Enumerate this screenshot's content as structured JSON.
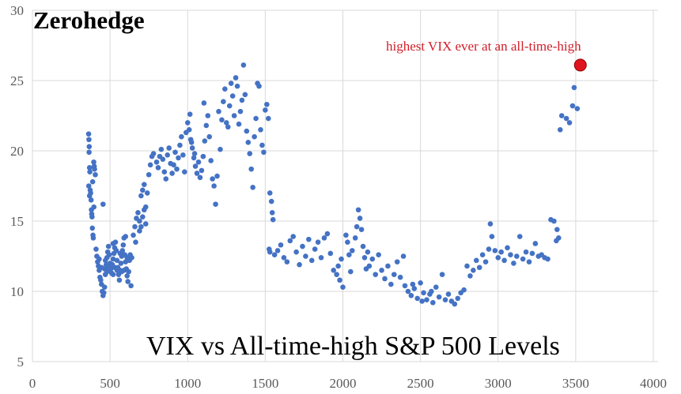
{
  "chart_data": {
    "type": "scatter",
    "title": "VIX vs All-time-high S&P 500 Levels",
    "watermark": "Zerohedge",
    "xlabel": "",
    "ylabel": "",
    "xlim": [
      0,
      4000
    ],
    "ylim": [
      5,
      30
    ],
    "xticks": [
      "0",
      "500",
      "1000",
      "1500",
      "2000",
      "2500",
      "3000",
      "3500",
      "4000"
    ],
    "yticks": [
      "5",
      "10",
      "15",
      "20",
      "25",
      "30"
    ],
    "grid": true,
    "series_color": "#4472c4",
    "highlight_color": "#e0141e",
    "annotation": "highest VIX ever at an all-time-high",
    "highlight_point": [
      3530,
      26.1
    ],
    "points": [
      [
        362,
        21.2
      ],
      [
        364,
        20.8
      ],
      [
        366,
        20.3
      ],
      [
        365,
        19.9
      ],
      [
        368,
        18.8
      ],
      [
        370,
        18.5
      ],
      [
        363,
        17.5
      ],
      [
        372,
        17.2
      ],
      [
        375,
        17.0
      ],
      [
        368,
        16.8
      ],
      [
        378,
        16.5
      ],
      [
        380,
        15.8
      ],
      [
        382,
        15.5
      ],
      [
        384,
        15.3
      ],
      [
        386,
        14.5
      ],
      [
        390,
        14.0
      ],
      [
        392,
        13.8
      ],
      [
        395,
        19.2
      ],
      [
        398,
        18.9
      ],
      [
        388,
        17.8
      ],
      [
        400,
        18.7
      ],
      [
        405,
        18.3
      ],
      [
        396,
        16.0
      ],
      [
        410,
        13.0
      ],
      [
        415,
        12.5
      ],
      [
        420,
        12.1
      ],
      [
        425,
        11.8
      ],
      [
        430,
        11.5
      ],
      [
        435,
        11.0
      ],
      [
        440,
        10.8
      ],
      [
        445,
        10.5
      ],
      [
        450,
        10.0
      ],
      [
        455,
        9.7
      ],
      [
        460,
        9.9
      ],
      [
        465,
        10.3
      ],
      [
        470,
        11.2
      ],
      [
        475,
        11.9
      ],
      [
        480,
        12.4
      ],
      [
        485,
        12.8
      ],
      [
        490,
        13.2
      ],
      [
        495,
        12.6
      ],
      [
        500,
        12.0
      ],
      [
        505,
        11.6
      ],
      [
        510,
        11.3
      ],
      [
        515,
        11.9
      ],
      [
        520,
        12.3
      ],
      [
        525,
        12.7
      ],
      [
        530,
        13.1
      ],
      [
        535,
        13.5
      ],
      [
        540,
        12.9
      ],
      [
        545,
        12.2
      ],
      [
        550,
        11.7
      ],
      [
        555,
        11.2
      ],
      [
        560,
        10.8
      ],
      [
        565,
        11.5
      ],
      [
        570,
        12.0
      ],
      [
        575,
        12.5
      ],
      [
        580,
        12.9
      ],
      [
        585,
        13.3
      ],
      [
        590,
        13.8
      ],
      [
        595,
        12.6
      ],
      [
        600,
        12.1
      ],
      [
        605,
        11.6
      ],
      [
        610,
        11.1
      ],
      [
        615,
        10.7
      ],
      [
        620,
        11.4
      ],
      [
        625,
        12.2
      ],
      [
        630,
        12.6
      ],
      [
        635,
        10.4
      ],
      [
        640,
        12.4
      ],
      [
        430,
        12.3
      ],
      [
        445,
        11.7
      ],
      [
        465,
        11.6
      ],
      [
        480,
        11.4
      ],
      [
        500,
        11.9
      ],
      [
        520,
        11.2
      ],
      [
        545,
        11.5
      ],
      [
        565,
        12.7
      ],
      [
        590,
        11.5
      ],
      [
        610,
        12.4
      ],
      [
        455,
        16.2
      ],
      [
        600,
        13.9
      ],
      [
        470,
        12.2
      ],
      [
        490,
        11.6
      ],
      [
        530,
        11.7
      ],
      [
        575,
        11.4
      ],
      [
        520,
        13.4
      ],
      [
        650,
        14.0
      ],
      [
        660,
        14.6
      ],
      [
        670,
        15.2
      ],
      [
        680,
        15.6
      ],
      [
        690,
        15.0
      ],
      [
        700,
        14.6
      ],
      [
        710,
        15.3
      ],
      [
        720,
        15.8
      ],
      [
        730,
        16.0
      ],
      [
        700,
        16.8
      ],
      [
        710,
        17.2
      ],
      [
        720,
        17.6
      ],
      [
        740,
        17.0
      ],
      [
        750,
        18.3
      ],
      [
        760,
        19.0
      ],
      [
        770,
        19.6
      ],
      [
        780,
        19.8
      ],
      [
        665,
        13.5
      ],
      [
        690,
        14.3
      ],
      [
        730,
        14.8
      ],
      [
        800,
        19.2
      ],
      [
        810,
        18.8
      ],
      [
        820,
        19.6
      ],
      [
        830,
        20.1
      ],
      [
        840,
        19.4
      ],
      [
        850,
        18.5
      ],
      [
        860,
        18.0
      ],
      [
        870,
        19.7
      ],
      [
        880,
        20.2
      ],
      [
        890,
        19.1
      ],
      [
        900,
        18.4
      ],
      [
        910,
        19.0
      ],
      [
        920,
        19.9
      ],
      [
        930,
        18.7
      ],
      [
        940,
        19.5
      ],
      [
        950,
        20.4
      ],
      [
        960,
        21.0
      ],
      [
        970,
        19.7
      ],
      [
        980,
        18.5
      ],
      [
        990,
        21.3
      ],
      [
        1000,
        22.0
      ],
      [
        1010,
        21.5
      ],
      [
        1020,
        20.8
      ],
      [
        1030,
        20.2
      ],
      [
        1040,
        19.5
      ],
      [
        1050,
        18.9
      ],
      [
        1060,
        18.4
      ],
      [
        1070,
        19.2
      ],
      [
        1080,
        18.1
      ],
      [
        1090,
        18.6
      ],
      [
        1100,
        19.6
      ],
      [
        1110,
        20.7
      ],
      [
        1120,
        21.8
      ],
      [
        1130,
        22.5
      ],
      [
        1140,
        21.0
      ],
      [
        1150,
        19.3
      ],
      [
        1160,
        18.0
      ],
      [
        1170,
        17.5
      ],
      [
        1180,
        16.2
      ],
      [
        1190,
        18.2
      ],
      [
        1200,
        22.8
      ],
      [
        1015,
        22.6
      ],
      [
        1025,
        20.6
      ],
      [
        1045,
        19.8
      ],
      [
        1105,
        23.4
      ],
      [
        1210,
        20.1
      ],
      [
        1220,
        22.2
      ],
      [
        1230,
        23.5
      ],
      [
        1240,
        24.4
      ],
      [
        1250,
        22.0
      ],
      [
        1260,
        21.7
      ],
      [
        1270,
        23.2
      ],
      [
        1280,
        24.8
      ],
      [
        1290,
        23.9
      ],
      [
        1300,
        22.5
      ],
      [
        1310,
        25.2
      ],
      [
        1320,
        24.6
      ],
      [
        1330,
        21.9
      ],
      [
        1340,
        22.8
      ],
      [
        1350,
        23.6
      ],
      [
        1360,
        26.1
      ],
      [
        1370,
        24.0
      ],
      [
        1380,
        21.4
      ],
      [
        1390,
        20.6
      ],
      [
        1400,
        19.8
      ],
      [
        1410,
        18.7
      ],
      [
        1420,
        17.4
      ],
      [
        1430,
        21.0
      ],
      [
        1440,
        22.3
      ],
      [
        1450,
        24.8
      ],
      [
        1460,
        24.6
      ],
      [
        1470,
        21.5
      ],
      [
        1480,
        20.4
      ],
      [
        1490,
        19.9
      ],
      [
        1500,
        22.9
      ],
      [
        1510,
        23.3
      ],
      [
        1520,
        22.3
      ],
      [
        1530,
        17.0
      ],
      [
        1540,
        16.4
      ],
      [
        1545,
        15.6
      ],
      [
        1550,
        15.1
      ],
      [
        1525,
        13.0
      ],
      [
        1530,
        12.8
      ],
      [
        1560,
        12.6
      ],
      [
        1580,
        12.9
      ],
      [
        1600,
        13.3
      ],
      [
        1620,
        12.4
      ],
      [
        1640,
        12.1
      ],
      [
        1660,
        13.6
      ],
      [
        1680,
        13.9
      ],
      [
        1700,
        12.8
      ],
      [
        1720,
        11.9
      ],
      [
        1740,
        13.2
      ],
      [
        1760,
        12.5
      ],
      [
        1780,
        13.7
      ],
      [
        1800,
        12.2
      ],
      [
        1820,
        13.0
      ],
      [
        1840,
        13.5
      ],
      [
        1860,
        12.4
      ],
      [
        1880,
        13.8
      ],
      [
        1900,
        14.1
      ],
      [
        1920,
        12.7
      ],
      [
        1940,
        11.5
      ],
      [
        1960,
        11.2
      ],
      [
        1980,
        10.8
      ],
      [
        2000,
        10.3
      ],
      [
        1970,
        11.8
      ],
      [
        1990,
        12.3
      ],
      [
        2020,
        14.0
      ],
      [
        2030,
        13.5
      ],
      [
        2040,
        12.6
      ],
      [
        2050,
        11.4
      ],
      [
        2060,
        12.9
      ],
      [
        2080,
        13.8
      ],
      [
        2090,
        14.6
      ],
      [
        2100,
        15.8
      ],
      [
        2110,
        15.2
      ],
      [
        2120,
        14.4
      ],
      [
        2130,
        13.2
      ],
      [
        2140,
        12.4
      ],
      [
        2150,
        11.6
      ],
      [
        2160,
        12.8
      ],
      [
        2170,
        11.8
      ],
      [
        2190,
        12.3
      ],
      [
        2210,
        11.2
      ],
      [
        2230,
        12.6
      ],
      [
        2250,
        11.5
      ],
      [
        2270,
        10.9
      ],
      [
        2290,
        11.8
      ],
      [
        2310,
        10.5
      ],
      [
        2330,
        11.2
      ],
      [
        2350,
        12.1
      ],
      [
        2370,
        11.0
      ],
      [
        2390,
        12.5
      ],
      [
        2400,
        10.4
      ],
      [
        2420,
        10.0
      ],
      [
        2440,
        9.7
      ],
      [
        2460,
        10.2
      ],
      [
        2480,
        9.5
      ],
      [
        2500,
        10.6
      ],
      [
        2520,
        9.9
      ],
      [
        2540,
        9.4
      ],
      [
        2560,
        9.8
      ],
      [
        2580,
        9.2
      ],
      [
        2600,
        10.3
      ],
      [
        2620,
        9.6
      ],
      [
        2640,
        11.2
      ],
      [
        2660,
        9.4
      ],
      [
        2680,
        9.8
      ],
      [
        2700,
        9.3
      ],
      [
        2720,
        9.1
      ],
      [
        2740,
        9.5
      ],
      [
        2760,
        9.9
      ],
      [
        2780,
        10.1
      ],
      [
        2450,
        10.5
      ],
      [
        2510,
        9.3
      ],
      [
        2570,
        10.0
      ],
      [
        2800,
        11.8
      ],
      [
        2820,
        11.1
      ],
      [
        2840,
        11.5
      ],
      [
        2860,
        12.2
      ],
      [
        2880,
        11.7
      ],
      [
        2900,
        12.6
      ],
      [
        2920,
        12.1
      ],
      [
        2940,
        13.0
      ],
      [
        2950,
        14.8
      ],
      [
        2960,
        13.9
      ],
      [
        2980,
        12.9
      ],
      [
        3000,
        12.4
      ],
      [
        3020,
        12.8
      ],
      [
        3040,
        12.2
      ],
      [
        3060,
        13.1
      ],
      [
        3080,
        12.6
      ],
      [
        3100,
        12.0
      ],
      [
        3120,
        12.5
      ],
      [
        3140,
        13.9
      ],
      [
        3160,
        12.3
      ],
      [
        3180,
        12.8
      ],
      [
        3200,
        12.1
      ],
      [
        3220,
        12.7
      ],
      [
        3240,
        13.4
      ],
      [
        3260,
        12.5
      ],
      [
        3280,
        12.6
      ],
      [
        3300,
        12.4
      ],
      [
        3320,
        12.3
      ],
      [
        3340,
        15.1
      ],
      [
        3360,
        15.0
      ],
      [
        3380,
        14.4
      ],
      [
        3390,
        13.8
      ],
      [
        3375,
        13.6
      ],
      [
        3400,
        21.5
      ],
      [
        3410,
        22.5
      ],
      [
        3440,
        22.3
      ],
      [
        3460,
        22.0
      ],
      [
        3480,
        23.2
      ],
      [
        3490,
        24.5
      ],
      [
        3510,
        23.0
      ]
    ]
  }
}
